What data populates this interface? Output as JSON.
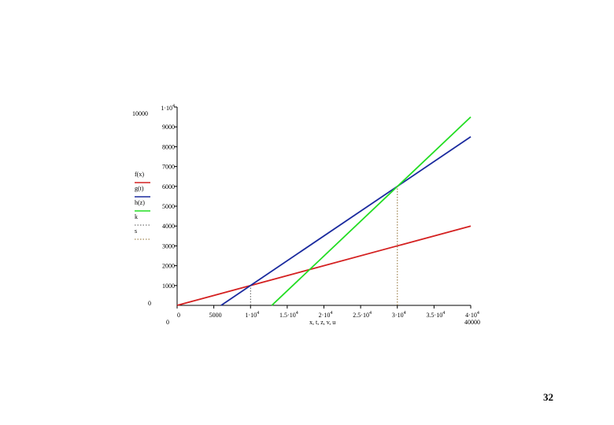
{
  "chart_data": {
    "type": "line",
    "title": "",
    "xlabel": "x, t, z, v, u",
    "ylabel": "",
    "xlim": [
      0,
      40000
    ],
    "ylim": [
      0,
      10000
    ],
    "x_range_labels": {
      "min": "0",
      "max": "40000"
    },
    "y_range_labels": {
      "min": "0",
      "max": "10000"
    },
    "x_ticks": [
      {
        "value": 0,
        "label": "0"
      },
      {
        "value": 5000,
        "label": "5000"
      },
      {
        "value": 10000,
        "mant": "1·10",
        "exp": "4"
      },
      {
        "value": 15000,
        "mant": "1.5·10",
        "exp": "4"
      },
      {
        "value": 20000,
        "mant": "2·10",
        "exp": "4"
      },
      {
        "value": 25000,
        "mant": "2.5·10",
        "exp": "4"
      },
      {
        "value": 30000,
        "mant": "3·10",
        "exp": "4"
      },
      {
        "value": 35000,
        "mant": "3.5·10",
        "exp": "4"
      },
      {
        "value": 40000,
        "mant": "4·10",
        "exp": "4"
      }
    ],
    "y_ticks": [
      {
        "value": 1000,
        "label": "1000"
      },
      {
        "value": 2000,
        "label": "2000"
      },
      {
        "value": 3000,
        "label": "3000"
      },
      {
        "value": 4000,
        "label": "4000"
      },
      {
        "value": 5000,
        "label": "5000"
      },
      {
        "value": 6000,
        "label": "6000"
      },
      {
        "value": 7000,
        "label": "7000"
      },
      {
        "value": 8000,
        "label": "8000"
      },
      {
        "value": 9000,
        "label": "9000"
      },
      {
        "value": 10000,
        "mant": "1·10",
        "exp": "4"
      }
    ],
    "series": [
      {
        "name": "f(x)",
        "color": "#d42020",
        "style": "solid",
        "points": [
          [
            0,
            0
          ],
          [
            40000,
            4000
          ]
        ]
      },
      {
        "name": "g(t)",
        "color": "#1a2a9e",
        "style": "solid",
        "points": [
          [
            6000,
            0
          ],
          [
            40000,
            8500
          ]
        ]
      },
      {
        "name": "h(z)",
        "color": "#22dd22",
        "style": "solid",
        "points": [
          [
            12900,
            0
          ],
          [
            40000,
            9500
          ]
        ]
      },
      {
        "name": "k",
        "color": "#555555",
        "style": "dotted",
        "points": [
          [
            10000,
            0
          ],
          [
            10000,
            1000
          ]
        ]
      },
      {
        "name": "s",
        "color": "#8b6a2a",
        "style": "dotted",
        "points": [
          [
            30000,
            0
          ],
          [
            30000,
            6000
          ]
        ]
      }
    ],
    "legend": "left",
    "grid": false
  },
  "page_number": "32"
}
